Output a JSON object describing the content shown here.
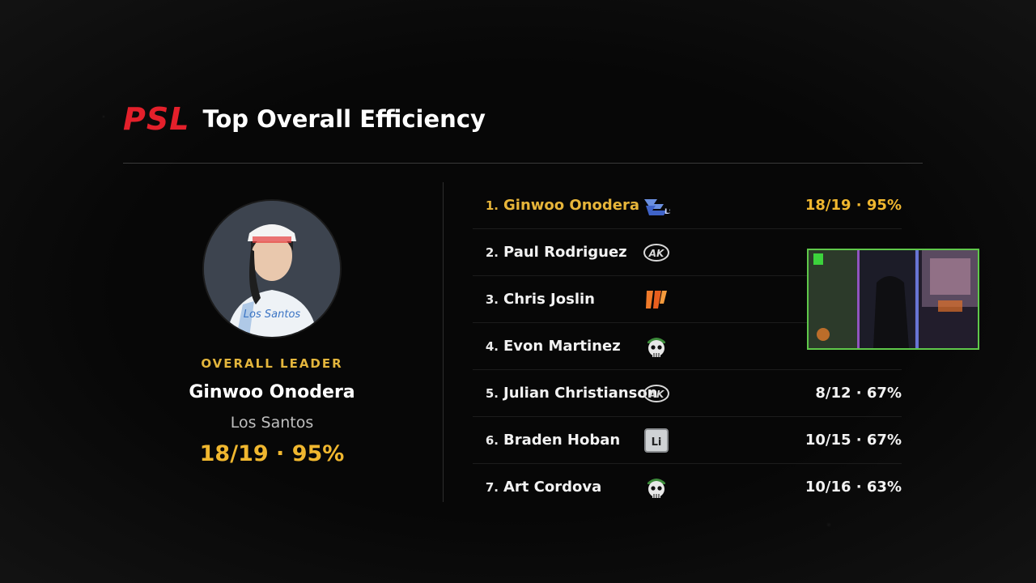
{
  "header": {
    "logo_text": "PSL",
    "title": "Top Overall Efficiency"
  },
  "leader": {
    "label": "OVERALL LEADER",
    "name": "Ginwoo Onodera",
    "team": "Los Santos",
    "stat": "18/19 · 95%"
  },
  "players": [
    {
      "rank": "1.",
      "name": "Ginwoo Onodera",
      "logo": "los-santos-icon",
      "stat": "18/19 · 95%"
    },
    {
      "rank": "2.",
      "name": "Paul Rodriguez",
      "logo": "ak-team-icon",
      "stat": ""
    },
    {
      "rank": "3.",
      "name": "Chris Joslin",
      "logo": "orange-team-icon",
      "stat": ""
    },
    {
      "rank": "4.",
      "name": "Evon Martinez",
      "logo": "skull-team-icon",
      "stat": ""
    },
    {
      "rank": "5.",
      "name": "Julian Christianson",
      "logo": "ak-team-icon",
      "stat": "8/12 · 67%"
    },
    {
      "rank": "6.",
      "name": "Braden Hoban",
      "logo": "li-team-icon",
      "stat": "10/15 · 67%"
    },
    {
      "rank": "7.",
      "name": "Art Cordova",
      "logo": "skull-team-icon",
      "stat": "10/16 · 63%"
    }
  ],
  "colors": {
    "accent": "#f0b72f",
    "brand": "#e4202b",
    "webcam_border": "#5fc84a"
  }
}
